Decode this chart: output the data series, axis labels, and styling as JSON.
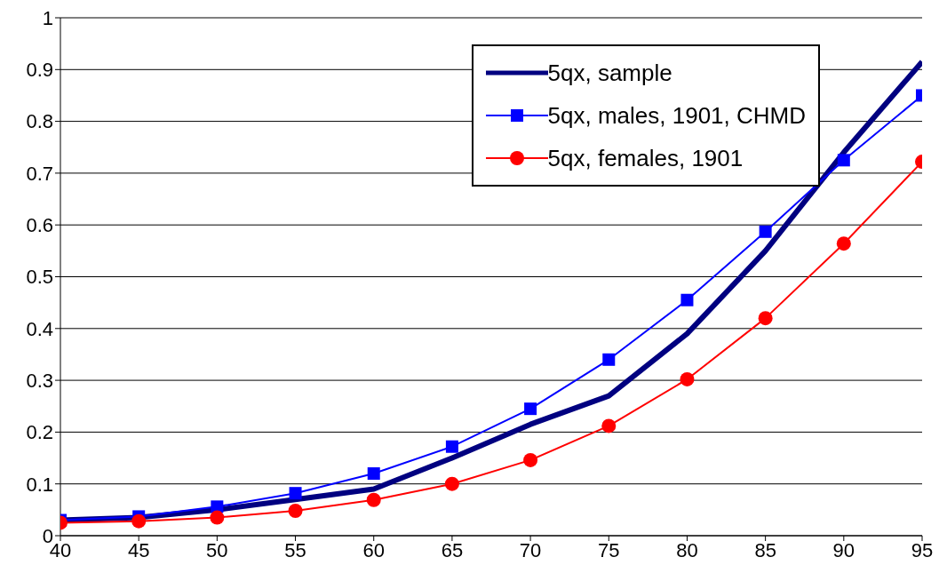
{
  "chart_data": {
    "type": "line",
    "x": [
      40,
      45,
      50,
      55,
      60,
      65,
      70,
      75,
      80,
      85,
      90,
      95
    ],
    "series": [
      {
        "name": "5qx, sample",
        "color": "#000080",
        "marker": "none",
        "values": [
          0.03,
          0.035,
          0.05,
          0.07,
          0.09,
          0.15,
          0.215,
          0.27,
          0.39,
          0.55,
          0.74,
          0.915
        ]
      },
      {
        "name": "5qx, males, 1901, CHMD",
        "color": "#0000ff",
        "marker": "square",
        "values": [
          0.03,
          0.037,
          0.056,
          0.082,
          0.12,
          0.172,
          0.245,
          0.34,
          0.455,
          0.587,
          0.725,
          0.85
        ]
      },
      {
        "name": "5qx, females, 1901",
        "color": "#ff0000",
        "marker": "circle",
        "values": [
          0.025,
          0.028,
          0.035,
          0.048,
          0.069,
          0.1,
          0.146,
          0.212,
          0.302,
          0.42,
          0.564,
          0.722
        ]
      }
    ],
    "xlim": [
      40,
      95
    ],
    "xticks": [
      40,
      45,
      50,
      55,
      60,
      65,
      70,
      75,
      80,
      85,
      90,
      95
    ],
    "ylim": [
      0,
      1
    ],
    "yticks": [
      0,
      0.1,
      0.2,
      0.3,
      0.4,
      0.5,
      0.6,
      0.7,
      0.8,
      0.9,
      1
    ],
    "grid": "y",
    "legend": "top right",
    "line_style": "solid"
  }
}
